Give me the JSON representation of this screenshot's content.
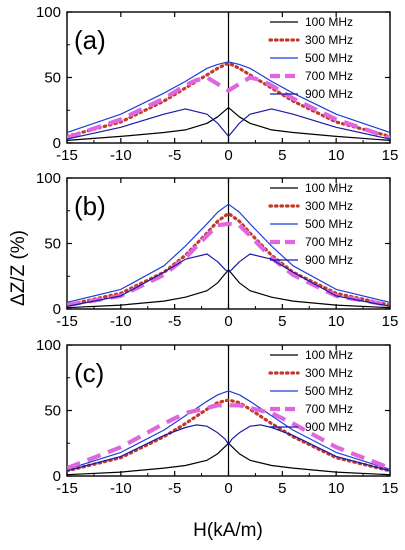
{
  "chart_data": {
    "type": "line",
    "xlabel": "H(kA/m)",
    "ylabel": "ΔZ/Z (%)",
    "xlim": [
      -15,
      15
    ],
    "ylim": [
      0,
      100
    ],
    "xticks": [
      -15,
      -10,
      -5,
      0,
      5,
      10,
      15
    ],
    "yticks": [
      0,
      50,
      100
    ],
    "legend": [
      "100 MHz",
      "300 MHz",
      "500 MHz",
      "700 MHz",
      "900 MHz"
    ],
    "series_styles": [
      {
        "name": "100 MHz",
        "color": "#000000",
        "dash": "solid"
      },
      {
        "name": "300 MHz",
        "color": "#c0392b",
        "dash": "dotted"
      },
      {
        "name": "500 MHz",
        "color": "#1f3fd6",
        "dash": "solid"
      },
      {
        "name": "700 MHz",
        "color": "#e066e0",
        "dash": "dashed"
      },
      {
        "name": "900 MHz",
        "color": "#1a1aa8",
        "dash": "solid"
      }
    ],
    "panels": [
      {
        "label": "(a)",
        "series": [
          {
            "name": "100 MHz",
            "x": [
              -15,
              -10,
              -6,
              -4,
              -2,
              -1,
              0,
              1,
              2,
              4,
              6,
              10,
              15
            ],
            "y": [
              2,
              5,
              8,
              10,
              15,
              20,
              27,
              20,
              15,
              10,
              8,
              5,
              2
            ]
          },
          {
            "name": "300 MHz",
            "x": [
              -15,
              -10,
              -6,
              -4,
              -2,
              -1,
              0,
              1,
              2,
              4,
              6,
              10,
              15
            ],
            "y": [
              5,
              16,
              32,
              42,
              52,
              57,
              61,
              57,
              52,
              42,
              32,
              16,
              5
            ]
          },
          {
            "name": "500 MHz",
            "x": [
              -15,
              -10,
              -6,
              -4,
              -2,
              -1,
              0,
              1,
              2,
              4,
              6,
              10,
              15
            ],
            "y": [
              8,
              22,
              38,
              47,
              57,
              60,
              62,
              60,
              57,
              47,
              38,
              22,
              8
            ]
          },
          {
            "name": "700 MHz",
            "x": [
              -15,
              -10,
              -6,
              -4,
              -3,
              -2,
              -1,
              0,
              1,
              2,
              3,
              4,
              6,
              10,
              15
            ],
            "y": [
              4,
              18,
              34,
              44,
              48,
              50,
              45,
              40,
              45,
              50,
              48,
              44,
              34,
              18,
              4
            ]
          },
          {
            "name": "900 MHz",
            "x": [
              -15,
              -10,
              -6,
              -4,
              -2,
              -1,
              -0.3,
              0,
              0.3,
              1,
              2,
              4,
              6,
              10,
              15
            ],
            "y": [
              3,
              12,
              22,
              26,
              22,
              15,
              8,
              5,
              8,
              15,
              22,
              26,
              22,
              12,
              3
            ]
          }
        ]
      },
      {
        "label": "(b)",
        "series": [
          {
            "name": "100 MHz",
            "x": [
              -15,
              -10,
              -6,
              -4,
              -2,
              -1,
              0,
              1,
              2,
              4,
              6,
              10,
              15
            ],
            "y": [
              1,
              3,
              6,
              9,
              14,
              20,
              30,
              20,
              14,
              9,
              6,
              3,
              1
            ]
          },
          {
            "name": "300 MHz",
            "x": [
              -15,
              -10,
              -6,
              -4,
              -2,
              -1,
              0,
              1,
              2,
              4,
              6,
              10,
              15
            ],
            "y": [
              3,
              12,
              28,
              41,
              58,
              67,
              73,
              67,
              58,
              41,
              28,
              12,
              3
            ]
          },
          {
            "name": "500 MHz",
            "x": [
              -15,
              -10,
              -6,
              -4,
              -2,
              -1,
              0,
              1,
              2,
              4,
              6,
              10,
              15
            ],
            "y": [
              5,
              15,
              33,
              48,
              65,
              74,
              80,
              74,
              65,
              48,
              33,
              15,
              5
            ]
          },
          {
            "name": "700 MHz",
            "x": [
              -15,
              -10,
              -6,
              -4,
              -2,
              -1,
              0,
              1,
              2,
              4,
              6,
              10,
              15
            ],
            "y": [
              3,
              10,
              26,
              39,
              56,
              64,
              65,
              64,
              56,
              39,
              26,
              10,
              3
            ]
          },
          {
            "name": "900 MHz",
            "x": [
              -15,
              -10,
              -6,
              -4,
              -2,
              -1,
              -0.3,
              0,
              0.3,
              1,
              2,
              4,
              6,
              10,
              15
            ],
            "y": [
              2,
              10,
              28,
              38,
              42,
              36,
              30,
              28,
              30,
              36,
              42,
              38,
              28,
              10,
              2
            ]
          }
        ]
      },
      {
        "label": "(c)",
        "series": [
          {
            "name": "100 MHz",
            "x": [
              -15,
              -10,
              -6,
              -4,
              -2,
              -1,
              0,
              1,
              2,
              4,
              6,
              10,
              15
            ],
            "y": [
              1,
              3,
              6,
              8,
              12,
              17,
              25,
              17,
              12,
              8,
              6,
              3,
              1
            ]
          },
          {
            "name": "300 MHz",
            "x": [
              -15,
              -10,
              -6,
              -4,
              -2,
              -1,
              0,
              1,
              2,
              4,
              6,
              10,
              15
            ],
            "y": [
              4,
              14,
              30,
              40,
              51,
              56,
              58,
              56,
              51,
              40,
              30,
              14,
              4
            ]
          },
          {
            "name": "500 MHz",
            "x": [
              -15,
              -10,
              -6,
              -4,
              -2,
              -1,
              0,
              1,
              2,
              4,
              6,
              10,
              15
            ],
            "y": [
              5,
              18,
              35,
              46,
              57,
              62,
              65,
              62,
              57,
              46,
              35,
              18,
              5
            ]
          },
          {
            "name": "700 MHz",
            "x": [
              -15,
              -10,
              -6,
              -4,
              -2,
              -1,
              0,
              1,
              2,
              4,
              6,
              10,
              15
            ],
            "y": [
              6,
              22,
              40,
              48,
              52,
              54,
              54,
              54,
              52,
              48,
              40,
              22,
              6
            ]
          },
          {
            "name": "900 MHz",
            "x": [
              -15,
              -10,
              -6,
              -4,
              -3,
              -2,
              -1,
              -0.3,
              0,
              0.3,
              1,
              2,
              3,
              4,
              6,
              10,
              15
            ],
            "y": [
              4,
              15,
              31,
              37,
              39,
              38,
              33,
              28,
              24,
              28,
              33,
              38,
              39,
              37,
              31,
              15,
              4
            ]
          }
        ]
      }
    ]
  }
}
